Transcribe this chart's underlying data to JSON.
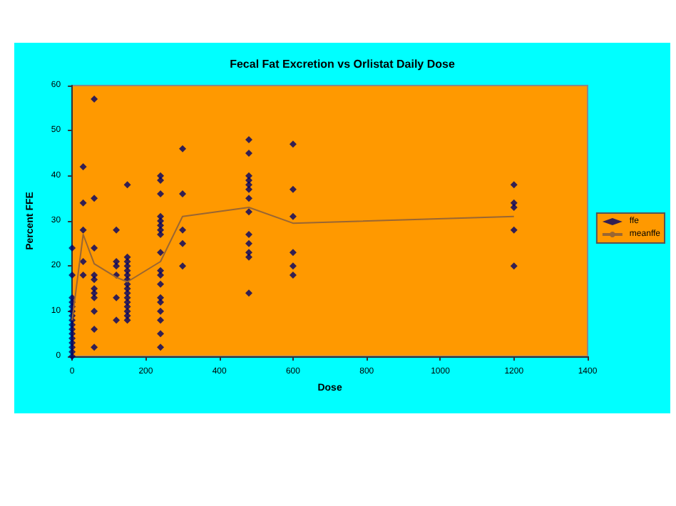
{
  "chart_data": {
    "type": "scatter",
    "title": "Fecal Fat Excretion vs Orlistat Daily Dose",
    "xlabel": "Dose",
    "ylabel": "Percent FFE",
    "xlim": [
      0,
      1400
    ],
    "xticks": [
      0,
      200,
      400,
      600,
      800,
      1000,
      1200,
      1400
    ],
    "ylim": [
      0,
      60
    ],
    "yticks": [
      0,
      10,
      20,
      30,
      40,
      50,
      60
    ],
    "grid": false,
    "legend": "right",
    "series": [
      {
        "name": "ffe",
        "marker": "diamond",
        "color": "#000066",
        "x": [
          0,
          0,
          0,
          0,
          0,
          0,
          0,
          0,
          0,
          0,
          0,
          0,
          0,
          0,
          0,
          0,
          30,
          30,
          30,
          30,
          30,
          60,
          60,
          60,
          60,
          60,
          60,
          60,
          60,
          60,
          60,
          60,
          120,
          120,
          120,
          120,
          120,
          120,
          150,
          150,
          150,
          150,
          150,
          150,
          150,
          150,
          150,
          150,
          150,
          150,
          150,
          150,
          150,
          150,
          240,
          240,
          240,
          240,
          240,
          240,
          240,
          240,
          240,
          240,
          240,
          240,
          240,
          240,
          240,
          240,
          240,
          240,
          300,
          300,
          300,
          300,
          300,
          480,
          480,
          480,
          480,
          480,
          480,
          480,
          480,
          480,
          480,
          480,
          480,
          480,
          600,
          600,
          600,
          600,
          600,
          600,
          1200,
          1200,
          1200,
          1200,
          1200
        ],
        "values": [
          0,
          1,
          2,
          3,
          4,
          5,
          6,
          7,
          8,
          9,
          10,
          11,
          12,
          13,
          18,
          24,
          42,
          34,
          28,
          21,
          18,
          57,
          35,
          24,
          18,
          17,
          15,
          14,
          13,
          10,
          6,
          2,
          28,
          21,
          20,
          18,
          13,
          8,
          38,
          22,
          21,
          20,
          19,
          18,
          17,
          16,
          15,
          14,
          13,
          12,
          11,
          10,
          9,
          8,
          40,
          39,
          36,
          31,
          30,
          29,
          28,
          27,
          23,
          19,
          18,
          16,
          13,
          12,
          10,
          8,
          5,
          2,
          46,
          36,
          28,
          25,
          20,
          48,
          45,
          40,
          39,
          38,
          37,
          35,
          32,
          27,
          25,
          23,
          22,
          14,
          47,
          37,
          31,
          23,
          20,
          18,
          38,
          34,
          33,
          28,
          20
        ]
      },
      {
        "name": "meanffe",
        "type": "line",
        "color": "#996633",
        "line_style": "solid",
        "x": [
          0,
          30,
          60,
          120,
          150,
          240,
          300,
          480,
          600,
          1200
        ],
        "values": [
          8,
          27,
          20.5,
          17.5,
          16.5,
          21,
          31,
          33,
          29.5,
          31
        ]
      }
    ]
  }
}
